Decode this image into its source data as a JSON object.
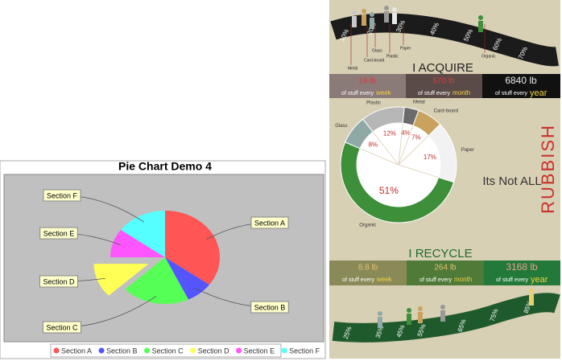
{
  "chart_data": [
    {
      "type": "pie",
      "title": "Pie Chart Demo 4",
      "categories": [
        "Section A",
        "Section B",
        "Section C",
        "Section D",
        "Section E",
        "Section F"
      ],
      "values": [
        35,
        8,
        20,
        12,
        10,
        15
      ],
      "colors": [
        "#ff5555",
        "#5555ff",
        "#55ff55",
        "#ffff55",
        "#ff55ff",
        "#55ffff"
      ],
      "exploded": [
        false,
        false,
        false,
        true,
        false,
        false
      ],
      "legend": "bottom"
    },
    {
      "type": "donut",
      "categories": [
        "Metal",
        "Card-board",
        "Paper",
        "Organic",
        "Glass",
        "Plastic"
      ],
      "values": [
        4,
        7,
        17,
        51,
        8,
        12
      ],
      "value_labels": [
        "4%",
        "7%",
        "17%",
        "51%",
        "8%",
        "12%"
      ],
      "colors": [
        "#6b6b6b",
        "#c9a25e",
        "#f2f2f2",
        "#3d8f3a",
        "#8fa9a6",
        "#b7b7b7"
      ]
    }
  ],
  "infographic": {
    "acquire": {
      "title": "I   ACQUIRE",
      "stats": [
        {
          "amount": "19 lb",
          "text": "of stuff every",
          "period": "week"
        },
        {
          "amount": "570 lb",
          "text": "of stuff every",
          "period": "month"
        },
        {
          "amount": "6840 lb",
          "text": "of stuff every",
          "period": "year"
        }
      ]
    },
    "top_road": [
      "10%",
      "20%",
      "30%",
      "40%",
      "50%",
      "60%",
      "70%"
    ],
    "top_labels": [
      "Metal",
      "Card-board",
      "Glass",
      "Plastic",
      "Paper",
      "Organic"
    ],
    "tagline": "Its Not ALL",
    "headline": "RUBBISH",
    "recycle": {
      "title": "I RECYCLE",
      "stats": [
        {
          "amount": "8.8 lb",
          "text": "of stuff every",
          "period": "week"
        },
        {
          "amount": "264 lb",
          "text": "of stuff every",
          "period": "month"
        },
        {
          "amount": "3168 lb",
          "text": "of stuff every",
          "period": "year"
        }
      ]
    },
    "bottom_road": [
      "25%",
      "35%",
      "45%",
      "55%",
      "65%",
      "75%",
      "85%"
    ]
  }
}
